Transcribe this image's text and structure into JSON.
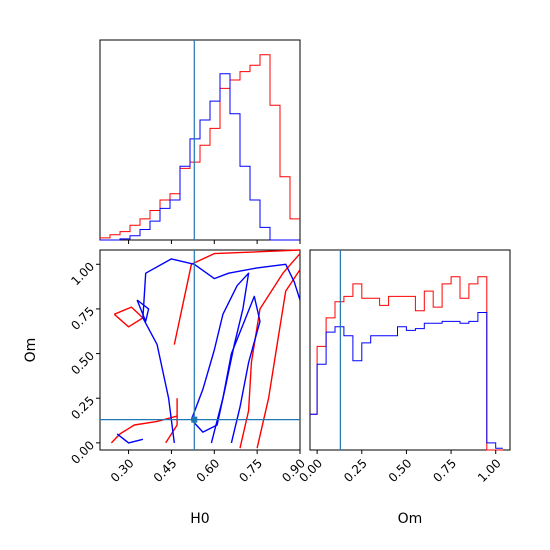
{
  "chart_data": [
    {
      "type": "histogram",
      "panel": "H0 marginal",
      "xlim": [
        0.2,
        0.9
      ],
      "truth": 0.53,
      "x_edges": [
        0.2,
        0.235,
        0.27,
        0.305,
        0.34,
        0.375,
        0.41,
        0.445,
        0.48,
        0.515,
        0.55,
        0.585,
        0.62,
        0.655,
        0.69,
        0.725,
        0.76,
        0.795,
        0.83,
        0.865,
        0.9
      ],
      "series": [
        {
          "color": "#ff0000",
          "values": [
            0.01,
            0.025,
            0.04,
            0.07,
            0.1,
            0.14,
            0.19,
            0.22,
            0.34,
            0.37,
            0.45,
            0.53,
            0.72,
            0.76,
            0.8,
            0.83,
            0.88,
            0.64,
            0.3,
            0.1
          ]
        },
        {
          "color": "#0000ff",
          "values": [
            0.0,
            0.0,
            0.005,
            0.02,
            0.05,
            0.09,
            0.15,
            0.19,
            0.35,
            0.48,
            0.57,
            0.66,
            0.79,
            0.6,
            0.35,
            0.19,
            0.06,
            0.0,
            0.0,
            0.0
          ]
        }
      ]
    },
    {
      "type": "contour",
      "panel": "Om vs H0",
      "xlabel": "H0",
      "ylabel": "Om",
      "xlim": [
        0.2,
        0.9
      ],
      "ylim": [
        -0.04,
        1.08
      ],
      "xticks": [
        "0.30",
        "0.45",
        "0.60",
        "0.75",
        "0.90"
      ],
      "yticks": [
        "0.00",
        "0.25",
        "0.50",
        "0.75",
        "1.00"
      ],
      "truth": {
        "H0": 0.53,
        "Om": 0.13
      },
      "series": [
        {
          "color": "#ff0000",
          "contours": [
            {
              "points": [
                [
                  0.69,
                  -0.03
                ],
                [
                  0.72,
                  0.18
                ],
                [
                  0.73,
                  0.45
                ],
                [
                  0.76,
                  0.75
                ],
                [
                  0.84,
                  0.95
                ],
                [
                  0.9,
                  1.06
                ]
              ]
            },
            {
              "points": [
                [
                  0.75,
                  -0.03
                ],
                [
                  0.79,
                  0.25
                ],
                [
                  0.82,
                  0.55
                ],
                [
                  0.85,
                  0.85
                ],
                [
                  0.9,
                  0.97
                ]
              ]
            },
            {
              "points": [
                [
                  0.24,
                  0.0
                ],
                [
                  0.27,
                  0.05
                ],
                [
                  0.32,
                  0.1
                ],
                [
                  0.4,
                  0.12
                ],
                [
                  0.47,
                  0.15
                ]
              ]
            },
            {
              "points": [
                [
                  0.43,
                  0.0
                ],
                [
                  0.47,
                  0.1
                ],
                [
                  0.47,
                  0.25
                ]
              ]
            },
            {
              "points": [
                [
                  0.25,
                  0.72
                ],
                [
                  0.3,
                  0.65
                ],
                [
                  0.35,
                  0.7
                ],
                [
                  0.31,
                  0.76
                ],
                [
                  0.25,
                  0.72
                ]
              ]
            },
            {
              "points": [
                [
                  0.46,
                  0.55
                ],
                [
                  0.52,
                  1.0
                ],
                [
                  0.6,
                  1.06
                ],
                [
                  0.9,
                  1.08
                ]
              ]
            }
          ]
        },
        {
          "color": "#0000ff",
          "contours": [
            {
              "points": [
                [
                  0.52,
                  0.13
                ],
                [
                  0.56,
                  0.3
                ],
                [
                  0.6,
                  0.52
                ],
                [
                  0.63,
                  0.72
                ],
                [
                  0.68,
                  0.88
                ],
                [
                  0.72,
                  0.95
                ],
                [
                  0.7,
                  0.75
                ],
                [
                  0.67,
                  0.55
                ],
                [
                  0.64,
                  0.32
                ],
                [
                  0.61,
                  0.1
                ],
                [
                  0.56,
                  0.06
                ],
                [
                  0.52,
                  0.13
                ]
              ]
            },
            {
              "points": [
                [
                  0.59,
                  0.0
                ],
                [
                  0.63,
                  0.25
                ],
                [
                  0.66,
                  0.5
                ],
                [
                  0.71,
                  0.7
                ],
                [
                  0.74,
                  0.82
                ],
                [
                  0.76,
                  0.68
                ],
                [
                  0.72,
                  0.45
                ],
                [
                  0.69,
                  0.2
                ],
                [
                  0.66,
                  0.0
                ]
              ]
            },
            {
              "points": [
                [
                  0.46,
                  0.0
                ],
                [
                  0.44,
                  0.25
                ],
                [
                  0.4,
                  0.55
                ],
                [
                  0.35,
                  0.7
                ],
                [
                  0.36,
                  0.95
                ],
                [
                  0.45,
                  1.03
                ],
                [
                  0.53,
                  1.0
                ],
                [
                  0.6,
                  0.92
                ],
                [
                  0.65,
                  0.95
                ],
                [
                  0.75,
                  0.98
                ],
                [
                  0.85,
                  1.0
                ],
                [
                  0.88,
                  0.9
                ],
                [
                  0.9,
                  0.8
                ]
              ]
            },
            {
              "points": [
                [
                  0.26,
                  0.05
                ],
                [
                  0.3,
                  0.0
                ],
                [
                  0.35,
                  0.02
                ]
              ]
            },
            {
              "points": [
                [
                  0.33,
                  0.8
                ],
                [
                  0.37,
                  0.75
                ],
                [
                  0.36,
                  0.68
                ],
                [
                  0.33,
                  0.8
                ]
              ]
            }
          ]
        }
      ]
    },
    {
      "type": "histogram",
      "panel": "Om marginal",
      "xlabel": "Om",
      "xlim": [
        -0.04,
        1.08
      ],
      "xticks": [
        "0.00",
        "0.25",
        "0.50",
        "0.75",
        "1.00"
      ],
      "truth": 0.13,
      "x_edges": [
        -0.04,
        0.0,
        0.05,
        0.1,
        0.15,
        0.2,
        0.25,
        0.3,
        0.35,
        0.4,
        0.45,
        0.5,
        0.55,
        0.6,
        0.65,
        0.7,
        0.75,
        0.8,
        0.85,
        0.9,
        0.95,
        1.0,
        1.04
      ],
      "series": [
        {
          "color": "#ff0000",
          "values": [
            0.2,
            0.58,
            0.74,
            0.83,
            0.86,
            0.93,
            0.85,
            0.85,
            0.81,
            0.86,
            0.86,
            0.86,
            0.78,
            0.89,
            0.8,
            0.93,
            0.97,
            0.85,
            0.93,
            0.97,
            0.0,
            0.0
          ]
        },
        {
          "color": "#0000ff",
          "values": [
            0.2,
            0.48,
            0.66,
            0.69,
            0.64,
            0.5,
            0.6,
            0.64,
            0.64,
            0.64,
            0.69,
            0.67,
            0.68,
            0.71,
            0.71,
            0.72,
            0.72,
            0.71,
            0.72,
            0.77,
            0.04,
            0.01
          ]
        }
      ]
    }
  ],
  "colors": {
    "truth_line": "#1f77b4",
    "frame": "#000000"
  }
}
